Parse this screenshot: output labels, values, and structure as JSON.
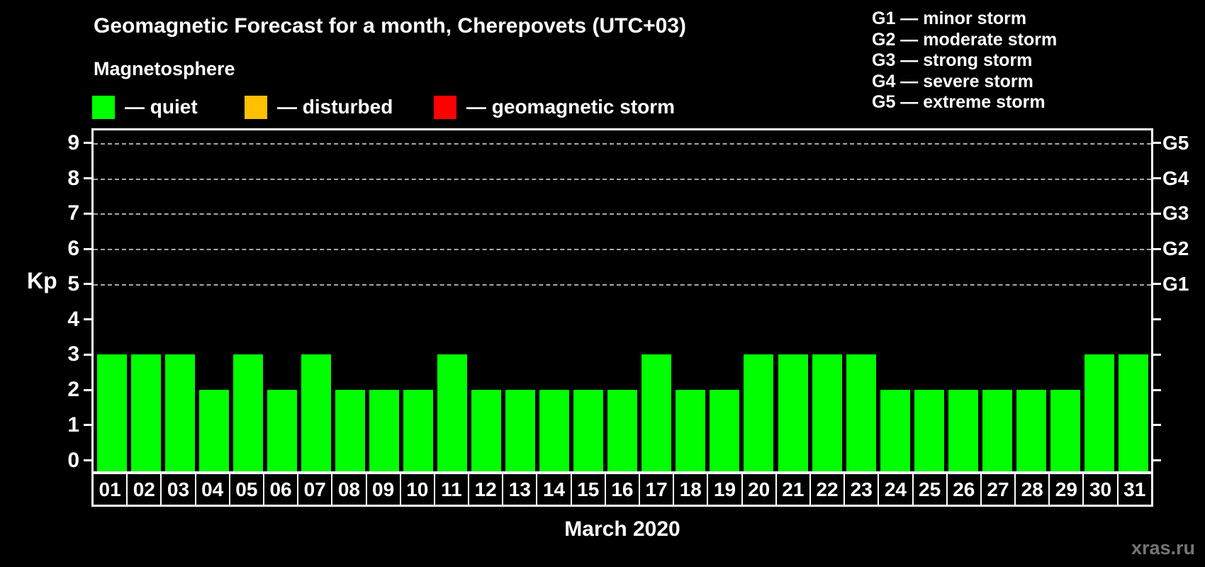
{
  "header": {
    "title": "Geomagnetic Forecast for a month, Cherepovets (UTC+03)",
    "subtitle": "Magnetosphere"
  },
  "kp_legend": {
    "items": [
      {
        "name": "quiet",
        "label": "— quiet",
        "color": "#00ff00",
        "x": 130
      },
      {
        "name": "disturbed",
        "label": "— disturbed",
        "color": "#ffc000",
        "x": 345
      },
      {
        "name": "geomagnetic-storm",
        "label": "— geomagnetic storm",
        "color": "#ff0000",
        "x": 612
      }
    ]
  },
  "g_legend": {
    "items": [
      "G1 — minor storm",
      "G2 — moderate storm",
      "G3 — strong storm",
      "G4 — severe storm",
      "G5 — extreme storm"
    ]
  },
  "axes": {
    "y_title": "Kp",
    "y_ticks": [
      "0",
      "1",
      "2",
      "3",
      "4",
      "5",
      "6",
      "7",
      "8",
      "9"
    ],
    "x_title": "March 2020"
  },
  "footer": {
    "watermark": "xras.ru"
  },
  "chart_data": {
    "type": "bar",
    "title": "Geomagnetic Forecast for a month, Cherepovets (UTC+03)",
    "subtitle": "Magnetosphere",
    "categories": [
      "01",
      "02",
      "03",
      "04",
      "05",
      "06",
      "07",
      "08",
      "09",
      "10",
      "11",
      "12",
      "13",
      "14",
      "15",
      "16",
      "17",
      "18",
      "19",
      "20",
      "21",
      "22",
      "23",
      "24",
      "25",
      "26",
      "27",
      "28",
      "29",
      "30",
      "31"
    ],
    "values": [
      3,
      3,
      3,
      2,
      3,
      2,
      3,
      2,
      2,
      2,
      3,
      2,
      2,
      2,
      2,
      2,
      3,
      2,
      2,
      3,
      3,
      3,
      3,
      2,
      2,
      2,
      2,
      2,
      2,
      3,
      3
    ],
    "xlabel": "March 2020",
    "ylabel": "Kp",
    "ylim": [
      0,
      9.75
    ],
    "yticks": [
      0,
      1,
      2,
      3,
      4,
      5,
      6,
      7,
      8,
      9
    ],
    "gridlines_at_kp": [
      5,
      6,
      7,
      8,
      9
    ],
    "grid_style": "dashed",
    "right_axis_labels": [
      {
        "kp": 5,
        "label": "G1"
      },
      {
        "kp": 6,
        "label": "G2"
      },
      {
        "kp": 7,
        "label": "G3"
      },
      {
        "kp": 8,
        "label": "G4"
      },
      {
        "kp": 9,
        "label": "G5"
      }
    ],
    "status_colors": {
      "quiet": "#00ff00",
      "disturbed": "#ffc000",
      "storm": "#ff0000"
    },
    "status_rule": {
      "quiet_below_kp": 4,
      "disturbed_below_kp": 5,
      "storm_at_or_above_kp": 5
    },
    "legend_position": "top-left",
    "background": "#000000"
  }
}
